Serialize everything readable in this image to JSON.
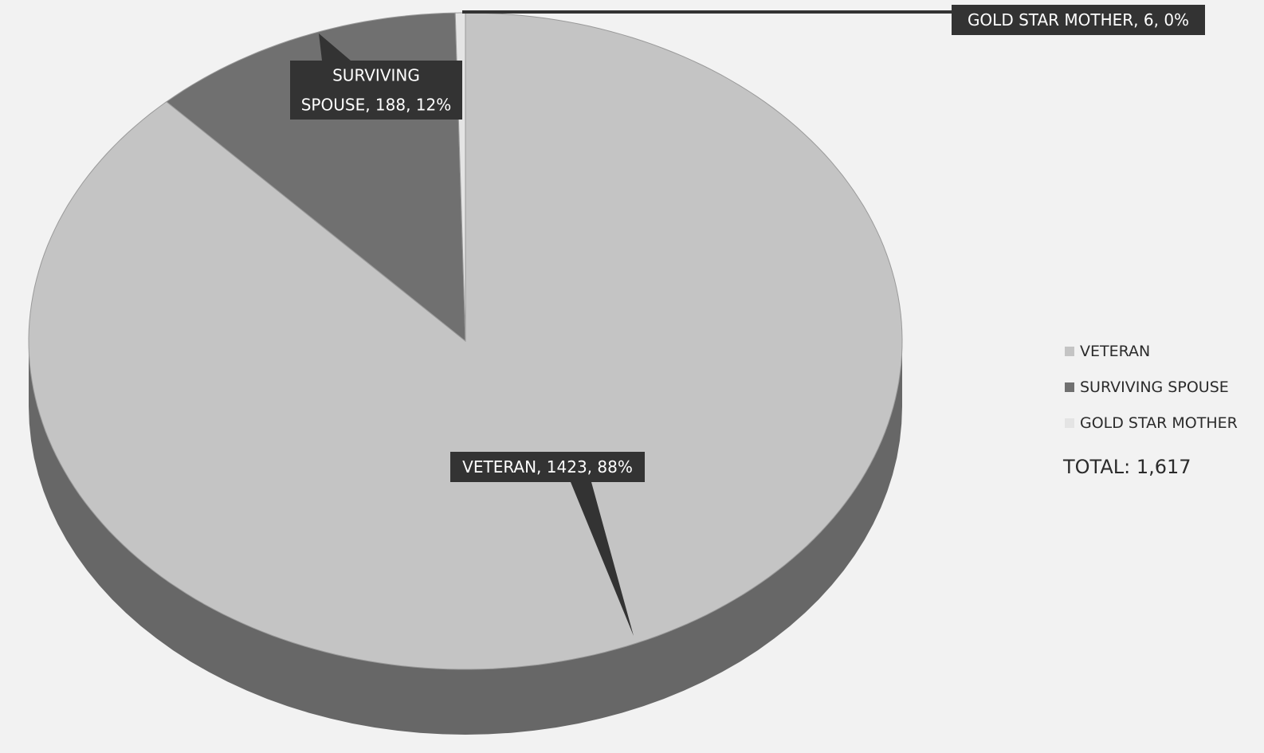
{
  "chart_data": {
    "type": "pie",
    "categories": [
      "VETERAN",
      "SURVIVING SPOUSE",
      "GOLD STAR MOTHER"
    ],
    "values": [
      1423,
      188,
      6
    ],
    "percentages": [
      "88%",
      "12%",
      "0%"
    ],
    "data_labels": [
      {
        "lines": [
          "VETERAN, 1423, 88%"
        ]
      },
      {
        "lines": [
          "SURVIVING",
          "SPOUSE, 188, 12%"
        ]
      },
      {
        "lines": [
          "GOLD STAR MOTHER, 6, 0%"
        ]
      }
    ],
    "colors": [
      "#c4c4c4",
      "#707070",
      "#e4e4e4"
    ],
    "style": "3d",
    "legend_position": "right"
  },
  "legend": {
    "items": [
      "VETERAN",
      "SURVIVING SPOUSE",
      "GOLD STAR MOTHER"
    ],
    "total": "TOTAL: 1,617"
  }
}
